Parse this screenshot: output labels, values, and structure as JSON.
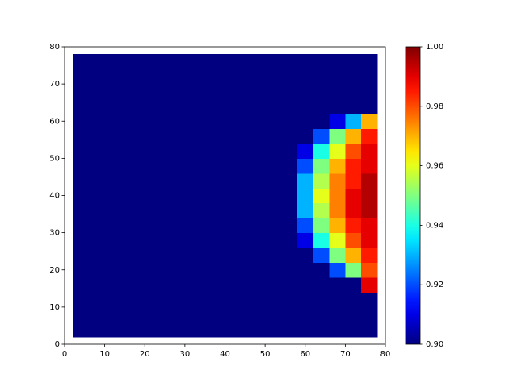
{
  "chart_data": {
    "type": "heatmap",
    "colormap": "jet",
    "x": [
      4,
      8,
      12,
      16,
      20,
      24,
      28,
      32,
      36,
      40,
      44,
      48,
      52,
      56,
      60,
      64,
      68,
      72,
      76
    ],
    "y": [
      4,
      8,
      12,
      16,
      20,
      24,
      28,
      32,
      36,
      40,
      44,
      48,
      52,
      56,
      60,
      64,
      68,
      72,
      76
    ],
    "z": [
      [
        0.9,
        0.9,
        0.9,
        0.9,
        0.9,
        0.9,
        0.9,
        0.9,
        0.9,
        0.9,
        0.9,
        0.9,
        0.9,
        0.9,
        0.9,
        0.9,
        0.9,
        0.9,
        0.9
      ],
      [
        0.9,
        0.9,
        0.9,
        0.9,
        0.9,
        0.9,
        0.9,
        0.9,
        0.9,
        0.9,
        0.9,
        0.9,
        0.9,
        0.9,
        0.9,
        0.9,
        0.9,
        0.9,
        0.9
      ],
      [
        0.9,
        0.9,
        0.9,
        0.9,
        0.9,
        0.9,
        0.9,
        0.9,
        0.9,
        0.9,
        0.9,
        0.9,
        0.9,
        0.9,
        0.9,
        0.9,
        0.9,
        0.9,
        0.9
      ],
      [
        0.9,
        0.9,
        0.9,
        0.9,
        0.9,
        0.9,
        0.9,
        0.9,
        0.9,
        0.9,
        0.9,
        0.9,
        0.9,
        0.9,
        0.9,
        0.9,
        0.9,
        0.9,
        0.99
      ],
      [
        0.9,
        0.9,
        0.9,
        0.9,
        0.9,
        0.9,
        0.9,
        0.9,
        0.9,
        0.9,
        0.9,
        0.9,
        0.9,
        0.9,
        0.9,
        0.9,
        0.92,
        0.95,
        0.98
      ],
      [
        0.9,
        0.9,
        0.9,
        0.9,
        0.9,
        0.9,
        0.9,
        0.9,
        0.9,
        0.9,
        0.9,
        0.9,
        0.9,
        0.9,
        0.9,
        0.92,
        0.95,
        0.97,
        0.985
      ],
      [
        0.9,
        0.9,
        0.9,
        0.9,
        0.9,
        0.9,
        0.9,
        0.9,
        0.9,
        0.9,
        0.9,
        0.9,
        0.9,
        0.9,
        0.91,
        0.94,
        0.96,
        0.98,
        0.99
      ],
      [
        0.9,
        0.9,
        0.9,
        0.9,
        0.9,
        0.9,
        0.9,
        0.9,
        0.9,
        0.9,
        0.9,
        0.9,
        0.9,
        0.9,
        0.92,
        0.95,
        0.97,
        0.985,
        0.99
      ],
      [
        0.9,
        0.9,
        0.9,
        0.9,
        0.9,
        0.9,
        0.9,
        0.9,
        0.9,
        0.9,
        0.9,
        0.9,
        0.9,
        0.9,
        0.93,
        0.955,
        0.975,
        0.99,
        0.995
      ],
      [
        0.9,
        0.9,
        0.9,
        0.9,
        0.9,
        0.9,
        0.9,
        0.9,
        0.9,
        0.9,
        0.9,
        0.9,
        0.9,
        0.9,
        0.93,
        0.96,
        0.975,
        0.99,
        0.995
      ],
      [
        0.9,
        0.9,
        0.9,
        0.9,
        0.9,
        0.9,
        0.9,
        0.9,
        0.9,
        0.9,
        0.9,
        0.9,
        0.9,
        0.9,
        0.93,
        0.955,
        0.975,
        0.985,
        0.995
      ],
      [
        0.9,
        0.9,
        0.9,
        0.9,
        0.9,
        0.9,
        0.9,
        0.9,
        0.9,
        0.9,
        0.9,
        0.9,
        0.9,
        0.9,
        0.92,
        0.95,
        0.97,
        0.985,
        0.99
      ],
      [
        0.9,
        0.9,
        0.9,
        0.9,
        0.9,
        0.9,
        0.9,
        0.9,
        0.9,
        0.9,
        0.9,
        0.9,
        0.9,
        0.9,
        0.91,
        0.94,
        0.96,
        0.98,
        0.99
      ],
      [
        0.9,
        0.9,
        0.9,
        0.9,
        0.9,
        0.9,
        0.9,
        0.9,
        0.9,
        0.9,
        0.9,
        0.9,
        0.9,
        0.9,
        0.9,
        0.92,
        0.95,
        0.97,
        0.985
      ],
      [
        0.9,
        0.9,
        0.9,
        0.9,
        0.9,
        0.9,
        0.9,
        0.9,
        0.9,
        0.9,
        0.9,
        0.9,
        0.9,
        0.9,
        0.9,
        0.9,
        0.91,
        0.93,
        0.97
      ],
      [
        0.9,
        0.9,
        0.9,
        0.9,
        0.9,
        0.9,
        0.9,
        0.9,
        0.9,
        0.9,
        0.9,
        0.9,
        0.9,
        0.9,
        0.9,
        0.9,
        0.9,
        0.9,
        0.9
      ],
      [
        0.9,
        0.9,
        0.9,
        0.9,
        0.9,
        0.9,
        0.9,
        0.9,
        0.9,
        0.9,
        0.9,
        0.9,
        0.9,
        0.9,
        0.9,
        0.9,
        0.9,
        0.9,
        0.9
      ],
      [
        0.9,
        0.9,
        0.9,
        0.9,
        0.9,
        0.9,
        0.9,
        0.9,
        0.9,
        0.9,
        0.9,
        0.9,
        0.9,
        0.9,
        0.9,
        0.9,
        0.9,
        0.9,
        0.9
      ],
      [
        0.9,
        0.9,
        0.9,
        0.9,
        0.9,
        0.9,
        0.9,
        0.9,
        0.9,
        0.9,
        0.9,
        0.9,
        0.9,
        0.9,
        0.9,
        0.9,
        0.9,
        0.9,
        0.9
      ]
    ],
    "xlim": [
      0,
      80
    ],
    "ylim": [
      0,
      80
    ],
    "xticks": [
      0,
      10,
      20,
      30,
      40,
      50,
      60,
      70,
      80
    ],
    "yticks": [
      0,
      10,
      20,
      30,
      40,
      50,
      60,
      70,
      80
    ],
    "clim": [
      0.9,
      1.0
    ],
    "cticks": [
      {
        "value": 0.9,
        "label": "0.90"
      },
      {
        "value": 0.92,
        "label": "0.92"
      },
      {
        "value": 0.94,
        "label": "0.94"
      },
      {
        "value": 0.96,
        "label": "0.96"
      },
      {
        "value": 0.98,
        "label": "0.98"
      },
      {
        "value": 1.0,
        "label": "1.00"
      }
    ]
  }
}
